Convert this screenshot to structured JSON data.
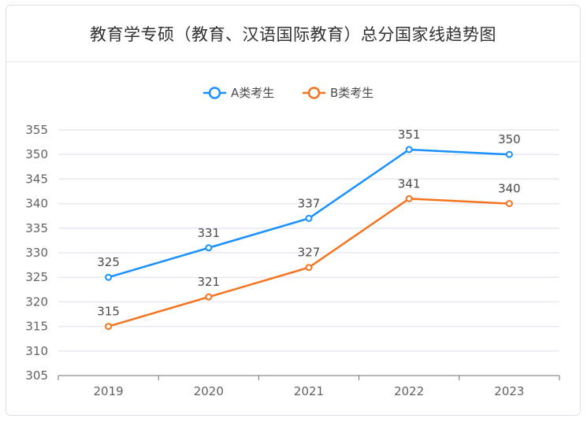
{
  "chart_data": {
    "type": "line",
    "title": "教育学专硕（教育、汉语国际教育）总分国家线趋势图",
    "categories": [
      "2019",
      "2020",
      "2021",
      "2022",
      "2023"
    ],
    "series": [
      {
        "name": "A类考生",
        "color": "#1890ff",
        "values": [
          325,
          331,
          337,
          351,
          350
        ]
      },
      {
        "name": "B类考生",
        "color": "#f5731e",
        "values": [
          315,
          321,
          327,
          341,
          340
        ]
      }
    ],
    "ylim": [
      305,
      355
    ],
    "yticks": [
      305,
      310,
      315,
      320,
      325,
      330,
      335,
      340,
      345,
      350,
      355
    ],
    "xlabel": "",
    "ylabel": "",
    "grid": true,
    "legend": "top-center"
  }
}
